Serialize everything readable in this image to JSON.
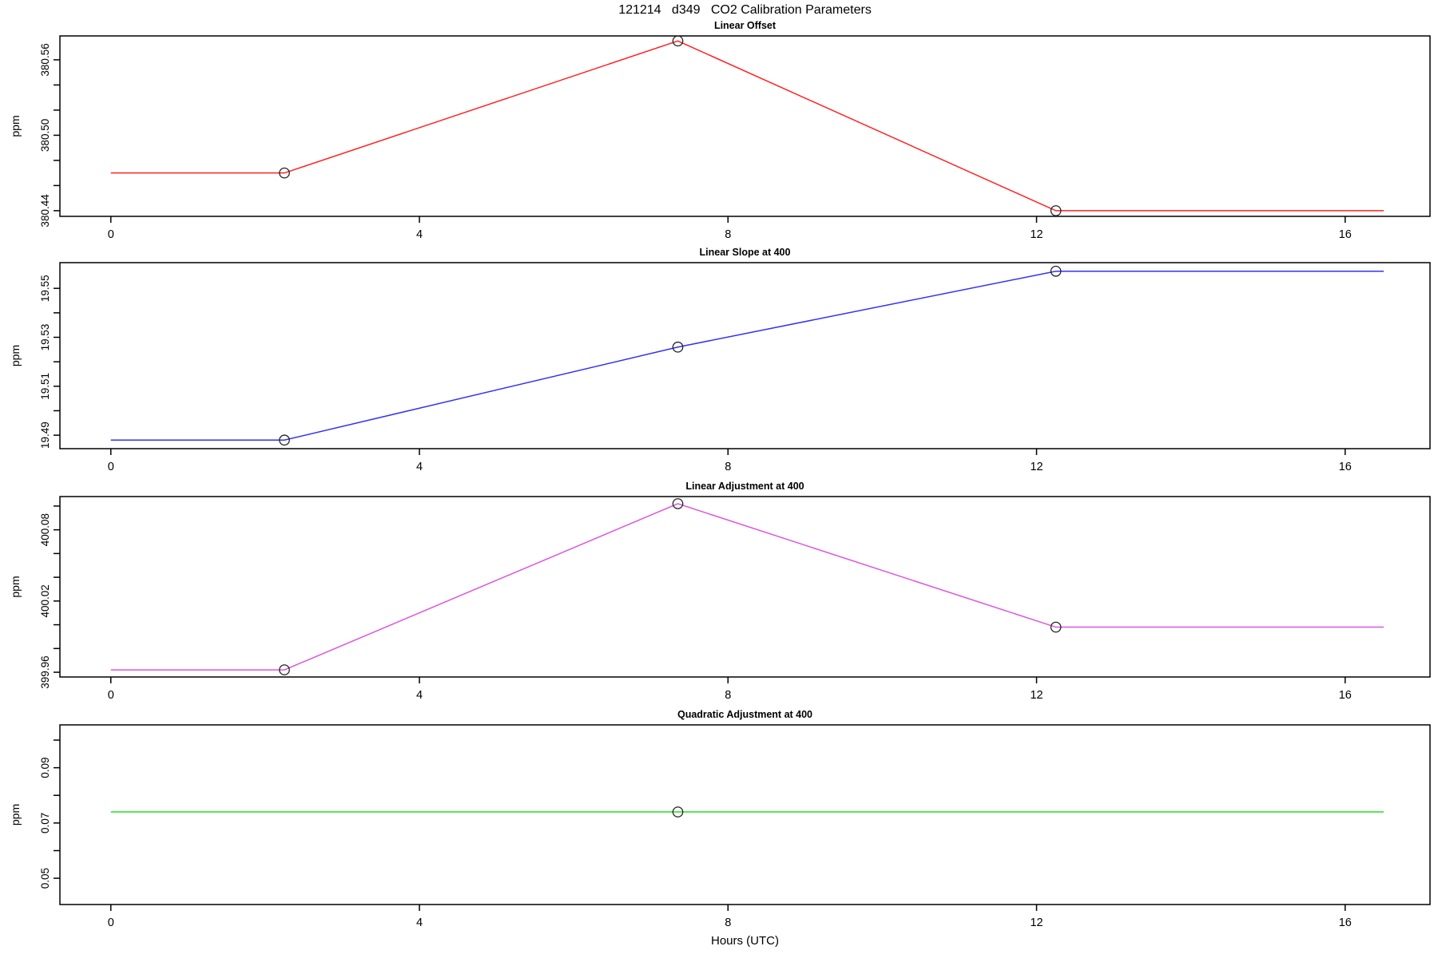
{
  "page": {
    "main_title": "121214   d349   CO2 Calibration Parameters",
    "xlabel": "Hours (UTC)",
    "background": "#ffffff",
    "axis_color": "#000000",
    "marker_style": "open-circle"
  },
  "chart_data": [
    {
      "type": "line",
      "title": "Linear Offset",
      "ylabel": "ppm",
      "series_color": "#ff2222",
      "xlim": [
        -0.66,
        17.1
      ],
      "ylim": [
        380.4355,
        380.579
      ],
      "x_ticks": [
        {
          "v": 0,
          "l": "0"
        },
        {
          "v": 4,
          "l": "4"
        },
        {
          "v": 8,
          "l": "8"
        },
        {
          "v": 12,
          "l": "12"
        },
        {
          "v": 16,
          "l": "16"
        }
      ],
      "y_ticks": [
        {
          "v": 380.44,
          "l": "380.44"
        },
        {
          "v": 380.46,
          "l": ""
        },
        {
          "v": 380.48,
          "l": ""
        },
        {
          "v": 380.5,
          "l": "380.50"
        },
        {
          "v": 380.52,
          "l": ""
        },
        {
          "v": 380.54,
          "l": ""
        },
        {
          "v": 380.56,
          "l": "380.56"
        }
      ],
      "line_x": [
        0,
        2.25,
        7.35,
        12.25,
        16.5
      ],
      "line_y": [
        380.47,
        380.47,
        380.575,
        380.44,
        380.44
      ],
      "points_x": [
        2.25,
        7.35,
        12.25
      ],
      "points_y": [
        380.47,
        380.575,
        380.44
      ],
      "grid": false,
      "legend": null
    },
    {
      "type": "line",
      "title": "Linear Slope at 400",
      "ylabel": "ppm",
      "series_color": "#3232f5",
      "xlim": [
        -0.66,
        17.1
      ],
      "ylim": [
        19.4845,
        19.5605
      ],
      "x_ticks": [
        {
          "v": 0,
          "l": "0"
        },
        {
          "v": 4,
          "l": "4"
        },
        {
          "v": 8,
          "l": "8"
        },
        {
          "v": 12,
          "l": "12"
        },
        {
          "v": 16,
          "l": "16"
        }
      ],
      "y_ticks": [
        {
          "v": 19.49,
          "l": "19.49"
        },
        {
          "v": 19.5,
          "l": ""
        },
        {
          "v": 19.51,
          "l": "19.51"
        },
        {
          "v": 19.52,
          "l": ""
        },
        {
          "v": 19.53,
          "l": "19.53"
        },
        {
          "v": 19.54,
          "l": ""
        },
        {
          "v": 19.55,
          "l": "19.55"
        }
      ],
      "line_x": [
        0,
        2.25,
        7.35,
        12.25,
        16.5
      ],
      "line_y": [
        19.488,
        19.488,
        19.526,
        19.557,
        19.557
      ],
      "points_x": [
        2.25,
        7.35,
        12.25
      ],
      "points_y": [
        19.488,
        19.526,
        19.557
      ],
      "grid": false,
      "legend": null
    },
    {
      "type": "line",
      "title": "Linear Adjustment at 400",
      "ylabel": "ppm",
      "series_color": "#dd55dd",
      "xlim": [
        -0.66,
        17.1
      ],
      "ylim": [
        399.956,
        400.108
      ],
      "x_ticks": [
        {
          "v": 0,
          "l": "0"
        },
        {
          "v": 4,
          "l": "4"
        },
        {
          "v": 8,
          "l": "8"
        },
        {
          "v": 12,
          "l": "12"
        },
        {
          "v": 16,
          "l": "16"
        }
      ],
      "y_ticks": [
        {
          "v": 399.96,
          "l": "399.96"
        },
        {
          "v": 399.98,
          "l": ""
        },
        {
          "v": 400.0,
          "l": ""
        },
        {
          "v": 400.02,
          "l": "400.02"
        },
        {
          "v": 400.04,
          "l": ""
        },
        {
          "v": 400.06,
          "l": ""
        },
        {
          "v": 400.08,
          "l": "400.08"
        },
        {
          "v": 400.1,
          "l": ""
        }
      ],
      "line_x": [
        0,
        2.25,
        7.35,
        12.25,
        16.5
      ],
      "line_y": [
        399.962,
        399.962,
        400.102,
        399.998,
        399.998
      ],
      "points_x": [
        2.25,
        7.35,
        12.25
      ],
      "points_y": [
        399.962,
        400.102,
        399.998
      ],
      "grid": false,
      "legend": null
    },
    {
      "type": "line",
      "title": "Quadratic Adjustment at 400",
      "ylabel": "ppm",
      "series_color": "#22dd22",
      "xlim": [
        -0.66,
        17.1
      ],
      "ylim": [
        0.0405,
        0.1055
      ],
      "x_ticks": [
        {
          "v": 0,
          "l": "0"
        },
        {
          "v": 4,
          "l": "4"
        },
        {
          "v": 8,
          "l": "8"
        },
        {
          "v": 12,
          "l": "12"
        },
        {
          "v": 16,
          "l": "16"
        }
      ],
      "y_ticks": [
        {
          "v": 0.05,
          "l": "0.05"
        },
        {
          "v": 0.06,
          "l": ""
        },
        {
          "v": 0.07,
          "l": "0.07"
        },
        {
          "v": 0.08,
          "l": ""
        },
        {
          "v": 0.09,
          "l": "0.09"
        },
        {
          "v": 0.1,
          "l": ""
        }
      ],
      "line_x": [
        0,
        16.5
      ],
      "line_y": [
        0.074,
        0.074
      ],
      "points_x": [
        7.35
      ],
      "points_y": [
        0.074
      ],
      "grid": false,
      "legend": null
    }
  ]
}
